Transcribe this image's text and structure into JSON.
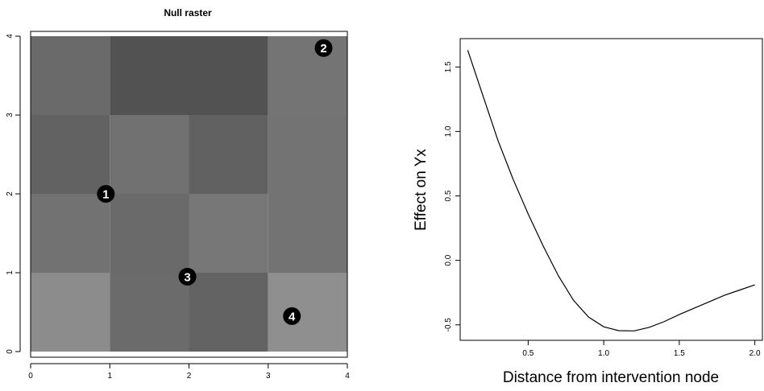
{
  "chart_data": [
    {
      "type": "heatmap",
      "title": "Null raster",
      "xlabel": "",
      "ylabel": "",
      "xlim": [
        0,
        4
      ],
      "ylim": [
        0,
        4
      ],
      "xticks": [
        "0",
        "1",
        "2",
        "3",
        "4"
      ],
      "yticks": [
        "0",
        "1",
        "2",
        "3",
        "4"
      ],
      "rows_top_to_bottom": [
        [
          "#6a6a6a",
          "#525252",
          "#525252",
          "#747474"
        ],
        [
          "#626262",
          "#717171",
          "#616161",
          "#737373"
        ],
        [
          "#727272",
          "#6a6a6a",
          "#777777",
          "#737373"
        ],
        [
          "#8c8c8c",
          "#6b6b6b",
          "#636363",
          "#8f8f8f"
        ]
      ],
      "markers": [
        {
          "label": "1",
          "x": 0.95,
          "y": 2.0
        },
        {
          "label": "2",
          "x": 3.7,
          "y": 3.85
        },
        {
          "label": "3",
          "x": 1.98,
          "y": 0.95
        },
        {
          "label": "4",
          "x": 3.3,
          "y": 0.45
        }
      ]
    },
    {
      "type": "line",
      "title": "",
      "xlabel": "Distance from intervention node",
      "ylabel": "Effect on Yx",
      "xlim": [
        0.05,
        2.05
      ],
      "ylim": [
        -0.62,
        1.72
      ],
      "xticks": [
        "0.5",
        "1.0",
        "1.5",
        "2.0"
      ],
      "yticks": [
        "-0.5",
        "0.0",
        "0.5",
        "1.0",
        "1.5"
      ],
      "series": [
        {
          "x": [
            0.1,
            0.2,
            0.3,
            0.4,
            0.5,
            0.6,
            0.7,
            0.8,
            0.9,
            1.0,
            1.1,
            1.2,
            1.3,
            1.4,
            1.5,
            1.6,
            1.7,
            1.8,
            1.9,
            2.0
          ],
          "values": [
            1.63,
            1.28,
            0.93,
            0.63,
            0.36,
            0.11,
            -0.12,
            -0.31,
            -0.44,
            -0.515,
            -0.545,
            -0.547,
            -0.52,
            -0.475,
            -0.42,
            -0.37,
            -0.32,
            -0.27,
            -0.23,
            -0.19
          ]
        }
      ]
    }
  ]
}
